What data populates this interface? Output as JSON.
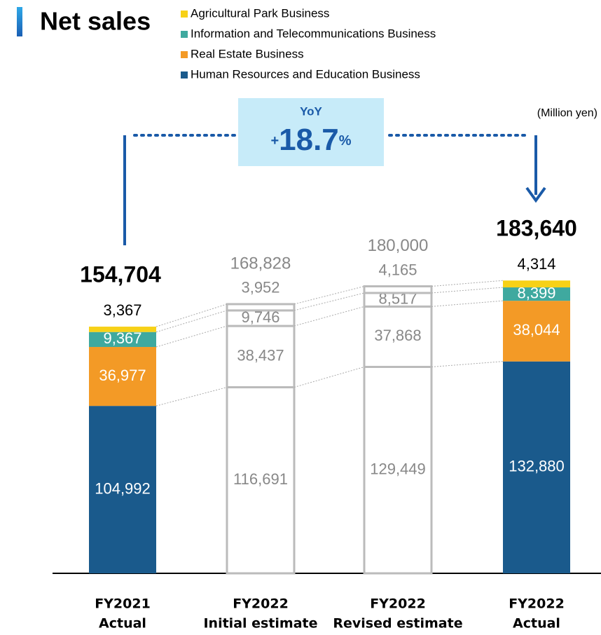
{
  "chart_data": {
    "type": "stacked_bar",
    "title": "Net sales",
    "unit_label": "(Million yen)",
    "yoy_label": "YoY",
    "yoy_value": [
      "+",
      "18.7",
      "%"
    ],
    "categories": [
      [
        "FY2021",
        "Actual"
      ],
      [
        "FY2022",
        "Initial estimate"
      ],
      [
        "FY2022",
        "Revised estimate"
      ],
      [
        "FY2022",
        "Actual"
      ]
    ],
    "outlined": [
      false,
      true,
      true,
      false
    ],
    "outline_color": "#bbbbbb",
    "ylim": [
      0,
      200000
    ],
    "series": [
      {
        "name": "Human Resources and Education Business",
        "color": "#1a5a8c",
        "values": [
          104992,
          116691,
          129449,
          132880
        ],
        "value_labels": [
          "104,992",
          "116,691",
          "129,449",
          "132,880"
        ]
      },
      {
        "name": "Real Estate Business",
        "color": "#f39a26",
        "values": [
          36977,
          38437,
          37868,
          38044
        ],
        "value_labels": [
          "36,977",
          "38,437",
          "37,868",
          "38,044"
        ]
      },
      {
        "name": "Information and Telecommunications Business",
        "color": "#3fa99f",
        "values": [
          9367,
          9746,
          8517,
          8399
        ],
        "value_labels": [
          "9,367",
          "9,746",
          "8,517",
          "8,399"
        ]
      },
      {
        "name": "Agricultural Park Business",
        "color": "#f7d117",
        "values": [
          3367,
          3952,
          4165,
          4314
        ],
        "value_labels": [
          "3,367",
          "3,952",
          "4,165",
          "4,314"
        ]
      }
    ],
    "totals": [
      154704,
      168828,
      180000,
      183640
    ],
    "total_labels": [
      "154,704",
      "168,828",
      "180,000",
      "183,640"
    ]
  }
}
